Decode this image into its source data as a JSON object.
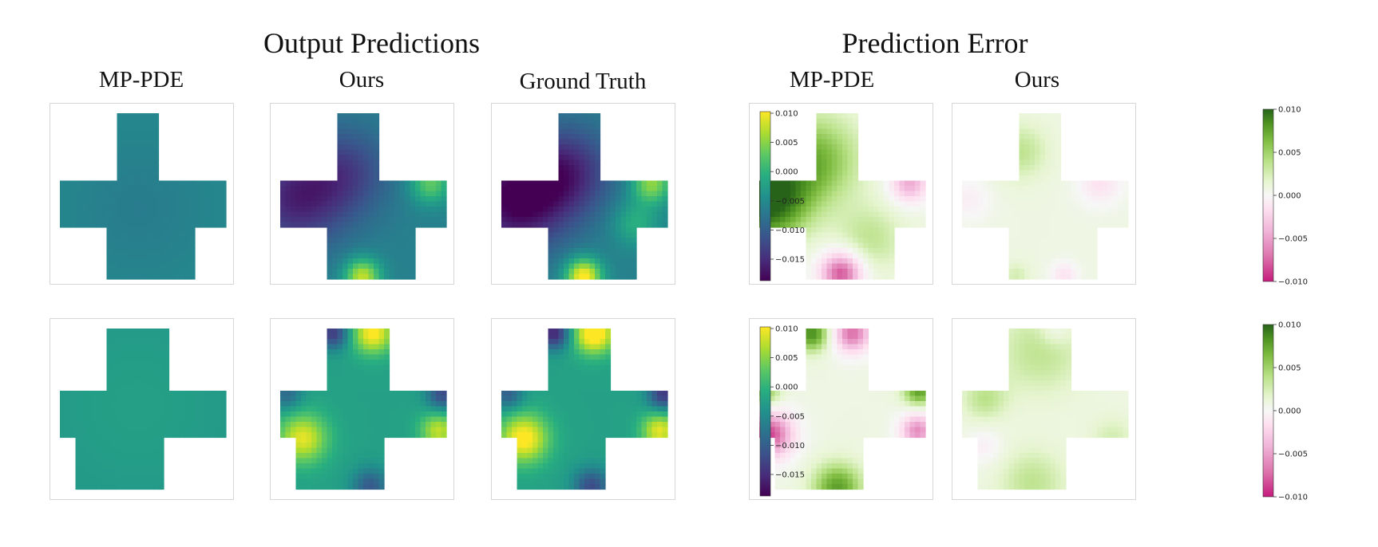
{
  "titles": {
    "predictions": "Output Predictions",
    "error": "Prediction Error"
  },
  "columns": {
    "pred": [
      "MP-PDE",
      "Ours",
      "Ground Truth"
    ],
    "err": [
      "MP-PDE",
      "Ours"
    ]
  },
  "colorbars": {
    "viridis_ticks": [
      "0.010",
      "0.005",
      "0.000",
      "−0.005",
      "−0.010",
      "−0.015"
    ],
    "piyg_ticks": [
      "0.010",
      "0.005",
      "0.000",
      "−0.005",
      "−0.010"
    ]
  },
  "colors": {
    "viridis": [
      "#440154",
      "#472d7b",
      "#3b528b",
      "#2c728e",
      "#21918c",
      "#28ae80",
      "#5ec962",
      "#addc30",
      "#fde725"
    ],
    "piyg": [
      "#c51b7d",
      "#de77ae",
      "#f1b6da",
      "#fde0ef",
      "#f7f7f7",
      "#e6f5d0",
      "#b8e186",
      "#7fbc41",
      "#4d9221",
      "#276419"
    ]
  }
}
